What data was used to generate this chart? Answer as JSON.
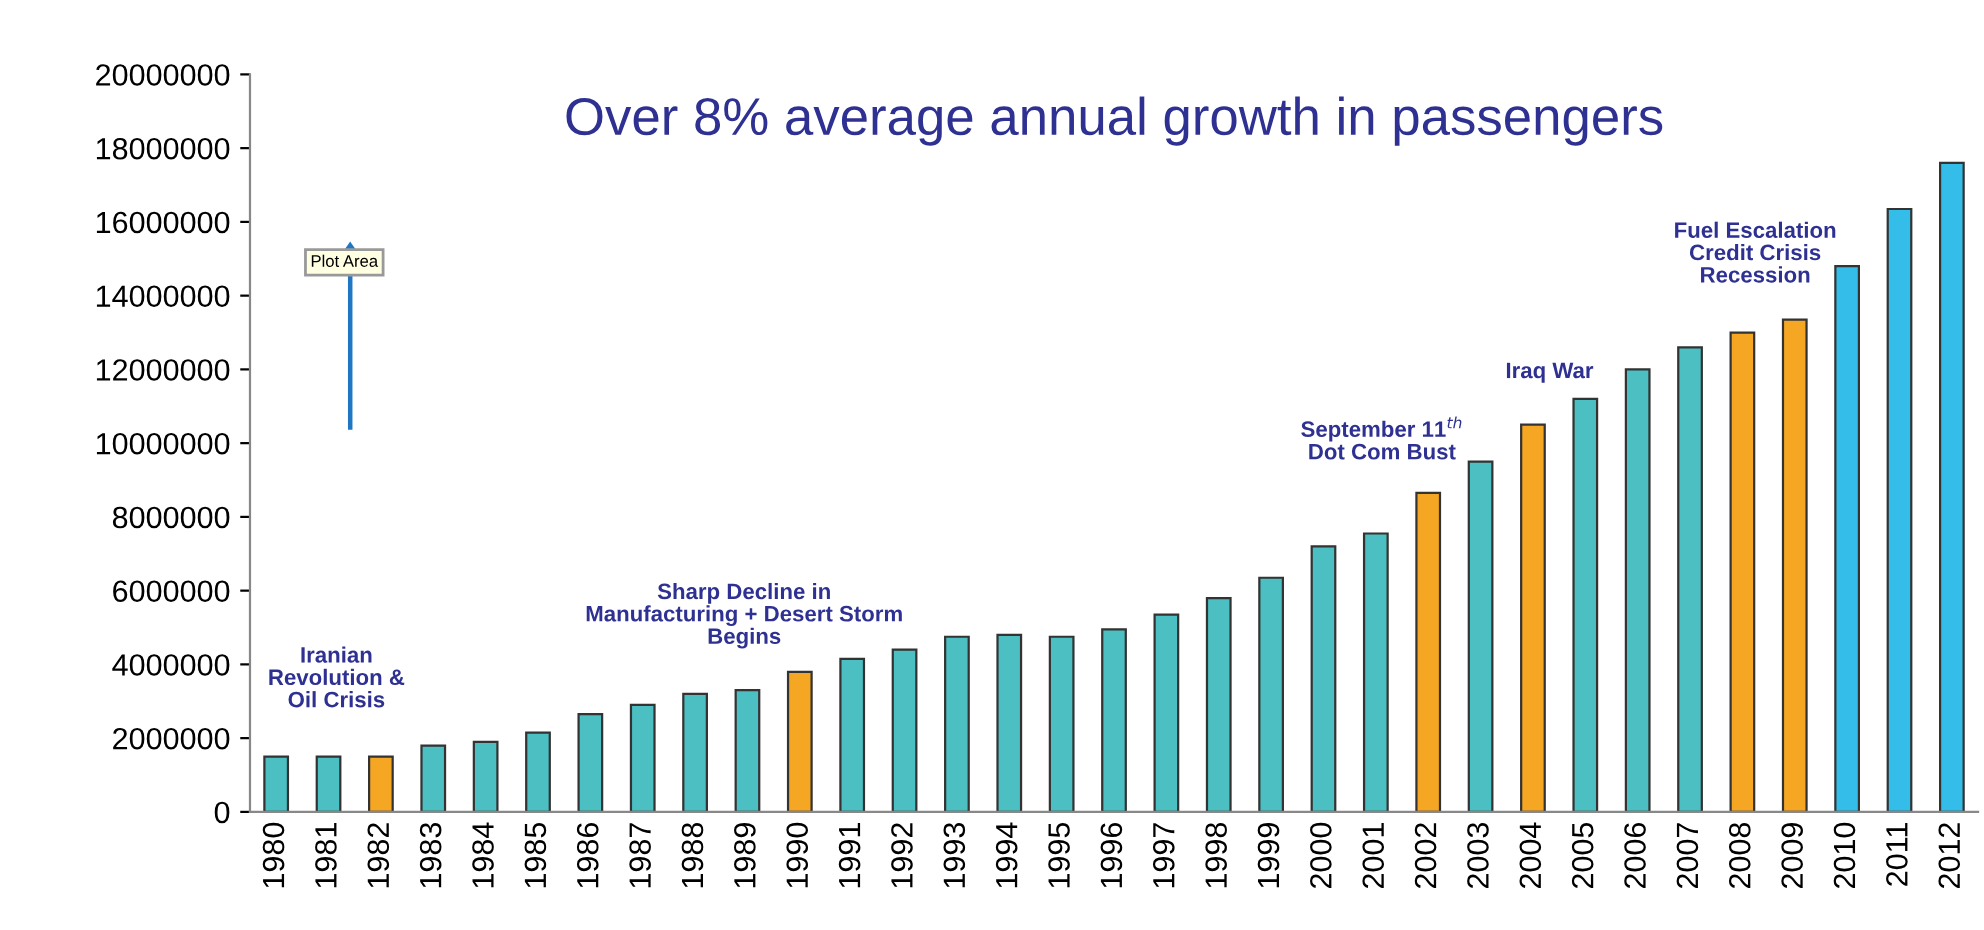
{
  "chart_data": {
    "type": "bar",
    "title": "Over 8% average annual growth in passengers",
    "categories": [
      "1980",
      "1981",
      "1982",
      "1983",
      "1984",
      "1985",
      "1986",
      "1987",
      "1988",
      "1989",
      "1990",
      "1991",
      "1992",
      "1993",
      "1994",
      "1995",
      "1996",
      "1997",
      "1998",
      "1999",
      "2000",
      "2001",
      "2002",
      "2003",
      "2004",
      "2005",
      "2006",
      "2007",
      "2008",
      "2009",
      "2010",
      "2011",
      "2012"
    ],
    "values": [
      1500000,
      1500000,
      1500000,
      1800000,
      1900000,
      2150000,
      2650000,
      2900000,
      3200000,
      3300000,
      3800000,
      4150000,
      4400000,
      4750000,
      4800000,
      4750000,
      4950000,
      5350000,
      5800000,
      6350000,
      7200000,
      7550000,
      8650000,
      9500000,
      10500000,
      11200000,
      12000000,
      12600000,
      13000000,
      13350000,
      14800000,
      16350000,
      17600000
    ],
    "colors": [
      "#4bbfc1",
      "#4bbfc1",
      "#f5a623",
      "#4bbfc1",
      "#4bbfc1",
      "#4bbfc1",
      "#4bbfc1",
      "#4bbfc1",
      "#4bbfc1",
      "#4bbfc1",
      "#f5a623",
      "#4bbfc1",
      "#4bbfc1",
      "#4bbfc1",
      "#4bbfc1",
      "#4bbfc1",
      "#4bbfc1",
      "#4bbfc1",
      "#4bbfc1",
      "#4bbfc1",
      "#4bbfc1",
      "#4bbfc1",
      "#f5a623",
      "#4bbfc1",
      "#f5a623",
      "#4bbfc1",
      "#4bbfc1",
      "#4bbfc1",
      "#f5a623",
      "#f5a623",
      "#33bde8",
      "#33bde8",
      "#33bde8"
    ],
    "ylim": [
      0,
      20000000
    ],
    "yticks": [
      0,
      2000000,
      4000000,
      6000000,
      8000000,
      10000000,
      12000000,
      14000000,
      16000000,
      18000000,
      20000000
    ],
    "grid": false,
    "annotations": [
      "Iranian\nRevolution &\nOil Crisis",
      "Sharp Decline in\nManufacturing + Desert Storm\nBegins",
      "September 11$^{th}$\nDot Com Bust",
      "Iraq War",
      "Fuel Escalation\nCredit Crisis\nRecession",
      "Plot Area"
    ]
  }
}
